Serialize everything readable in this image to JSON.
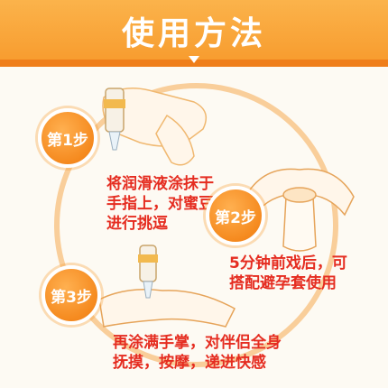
{
  "header": {
    "title": "使用方法"
  },
  "steps": [
    {
      "badge": "第1步",
      "lines": [
        "将润滑液涂抹于",
        "手指上，对蜜豆",
        "进行挑逗"
      ]
    },
    {
      "badge": "第2步",
      "lines": [
        "5分钟前戏后，可",
        "搭配避孕套使用"
      ]
    },
    {
      "badge": "第3步",
      "lines": [
        "再涂满手掌，对伴侣全身",
        "抚摸，按摩，递进快感"
      ]
    }
  ],
  "colors": {
    "accent": "#f79a2c",
    "text": "#e52c20",
    "ring": "#f6aa50"
  }
}
